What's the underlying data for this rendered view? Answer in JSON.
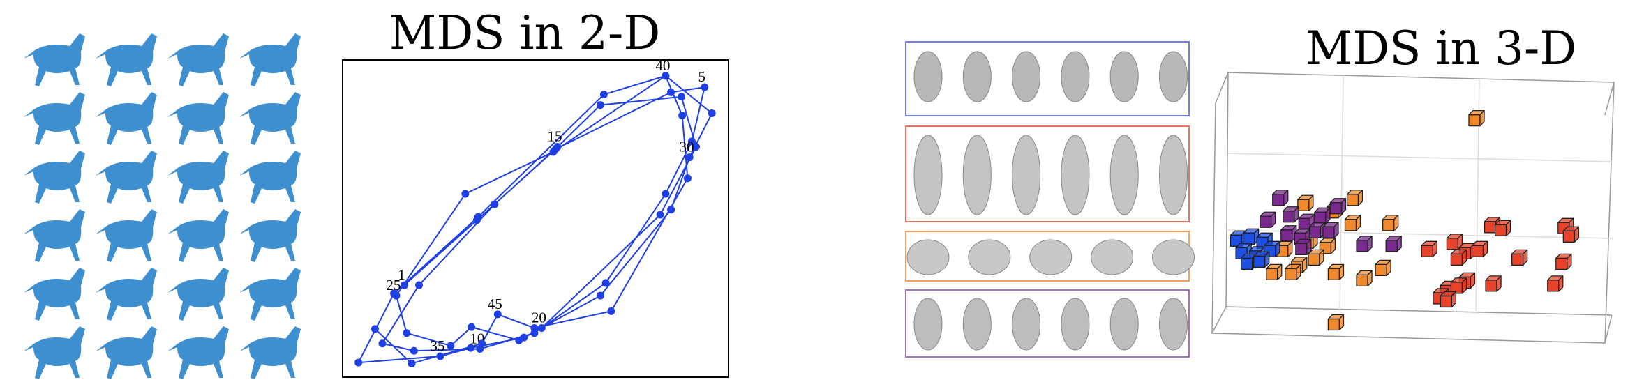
{
  "chart_data": [
    {
      "type": "line",
      "title": "MDS in 2-D",
      "color": "#1f3fe6",
      "xlim": [
        0,
        100
      ],
      "ylim": [
        0,
        100
      ],
      "x": [
        16.0,
        34.8,
        55.2,
        85.1,
        93.8,
        90.5,
        83.7,
        68.2,
        49.7,
        35.6,
        18.5,
        10.3,
        19.8,
        39.4,
        55.7,
        66.8,
        87.8,
        91.6,
        82.3,
        51.6,
        45.7,
        33.4,
        28.0,
        16.6,
        13.9,
        31.8,
        54.6,
        83.7,
        95.7,
        89.9,
        85.1,
        66.8,
        47.0,
        33.2,
        25.3,
        4.1,
        13.3,
        35.1,
        67.7,
        83.7,
        88.0,
        89.4,
        69.6,
        49.7,
        40.2,
        36.1,
        17.9,
        8.4
      ],
      "values": [
        29.0,
        49.5,
        71.9,
        89.8,
        91.4,
        74.3,
        57.8,
        29.7,
        13.9,
        8.9,
        8.3,
        10.6,
        29.0,
        54.5,
        72.6,
        85.8,
        88.4,
        72.6,
        51.2,
        15.5,
        11.6,
        15.8,
        9.9,
        13.9,
        25.7,
        57.8,
        71.0,
        95.0,
        83.2,
        69.3,
        52.8,
        25.7,
        12.5,
        9.2,
        6.6,
        4.6,
        26.4,
        50.5,
        89.1,
        95.0,
        82.5,
        62.7,
        20.8,
        15.5,
        19.8,
        10.6,
        4.3,
        15.2
      ],
      "point_labels": [
        "1",
        null,
        null,
        null,
        "5",
        null,
        null,
        null,
        null,
        "10",
        null,
        null,
        null,
        null,
        "15",
        null,
        null,
        null,
        null,
        "20",
        null,
        null,
        null,
        null,
        "25",
        null,
        null,
        null,
        null,
        "30",
        null,
        null,
        null,
        null,
        "35",
        null,
        null,
        null,
        null,
        "40",
        null,
        null,
        null,
        null,
        "45",
        null,
        null,
        null
      ]
    },
    {
      "type": "scatter",
      "title": "MDS in 3-D",
      "xlim": [
        0,
        383
      ],
      "ylim": [
        0,
        257
      ],
      "series": [
        {
          "color": "#f08a2c",
          "x": [
            250,
            87,
            134,
            115,
            132,
            168,
            108,
            97,
            81,
            75,
            57,
            116,
            143,
            161,
            116,
            67,
            91
          ],
          "values": [
            210,
            129,
            134,
            122,
            110,
            110,
            88,
            77,
            70,
            63,
            63,
            63,
            57,
            67,
            15,
            85,
            93
          ]
        },
        {
          "color": "#7a2a8e",
          "x": [
            63,
            51,
            73,
            88,
            103,
            118,
            71,
            84,
            98,
            85,
            143,
            171,
            111
          ],
          "values": [
            134,
            113,
            118,
            111,
            117,
            126,
            100,
            97,
            103,
            87,
            90,
            90,
            103
          ]
        },
        {
          "color": "#1f4fe0",
          "x": [
            23,
            35,
            48,
            28,
            41,
            55,
            33,
            45
          ],
          "values": [
            95,
            97,
            93,
            83,
            80,
            85,
            73,
            75
          ]
        },
        {
          "color": "#e8432a",
          "x": [
            265,
            275,
            335,
            340,
            229,
            241,
            253,
            233,
            291,
            333,
            241,
            223,
            233,
            216,
            223,
            266,
            325,
            205
          ],
          "values": [
            108,
            105,
            107,
            99,
            92,
            83,
            85,
            77,
            77,
            73,
            55,
            47,
            50,
            40,
            37,
            52,
            52,
            85
          ]
        }
      ]
    }
  ]
}
